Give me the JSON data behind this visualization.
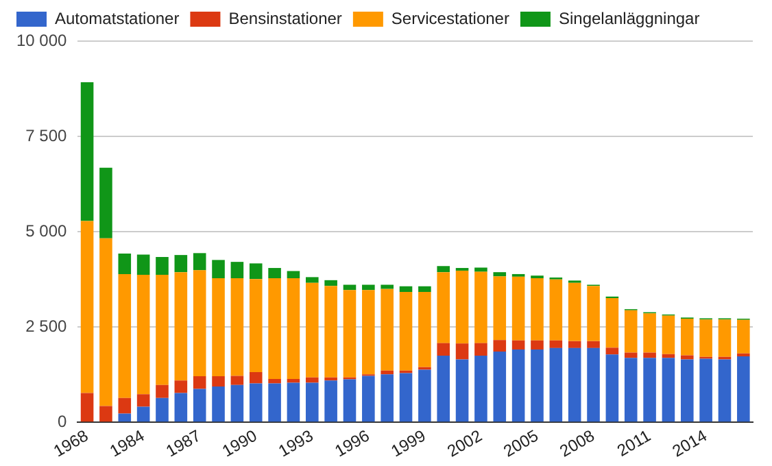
{
  "chart_data": {
    "type": "bar",
    "stacked": true,
    "categories": [
      "1968",
      null,
      null,
      "1984",
      null,
      null,
      "1987",
      null,
      null,
      "1990",
      null,
      null,
      "1993",
      null,
      null,
      "1996",
      null,
      null,
      "1999",
      null,
      null,
      "2002",
      null,
      null,
      "2005",
      null,
      null,
      "2008",
      null,
      null,
      "2011",
      null,
      null,
      "2014",
      null,
      null
    ],
    "series": [
      {
        "name": "Automatstationer",
        "color": "#3366cc",
        "values": [
          0,
          0,
          230,
          410,
          640,
          770,
          880,
          940,
          980,
          1020,
          1020,
          1040,
          1040,
          1100,
          1130,
          1220,
          1260,
          1290,
          1380,
          1750,
          1650,
          1750,
          1860,
          1910,
          1910,
          1950,
          1950,
          1950,
          1780,
          1690,
          1690,
          1690,
          1650,
          1670,
          1650,
          1730
        ]
      },
      {
        "name": "Bensinstationer",
        "color": "#dc3912",
        "values": [
          770,
          430,
          410,
          330,
          340,
          330,
          330,
          270,
          240,
          300,
          120,
          100,
          140,
          80,
          50,
          40,
          100,
          70,
          70,
          330,
          420,
          330,
          300,
          240,
          240,
          200,
          180,
          180,
          180,
          140,
          140,
          100,
          110,
          50,
          70,
          80
        ]
      },
      {
        "name": "Servicestationer",
        "color": "#ff9900",
        "values": [
          4510,
          4400,
          3250,
          3130,
          2890,
          2840,
          2780,
          2570,
          2560,
          2440,
          2640,
          2640,
          2480,
          2400,
          2290,
          2210,
          2140,
          2060,
          1970,
          1860,
          1910,
          1870,
          1670,
          1670,
          1630,
          1600,
          1530,
          1450,
          1300,
          1110,
          1030,
          1010,
          960,
          980,
          980,
          880
        ]
      },
      {
        "name": "Singelanläggningar",
        "color": "#109618",
        "values": [
          3640,
          1850,
          540,
          530,
          470,
          450,
          450,
          480,
          430,
          410,
          270,
          190,
          150,
          150,
          140,
          140,
          110,
          150,
          150,
          160,
          70,
          110,
          110,
          70,
          70,
          50,
          60,
          30,
          40,
          30,
          30,
          30,
          30,
          30,
          30,
          30
        ]
      }
    ],
    "ylim": [
      0,
      10000
    ],
    "yticks": [
      {
        "value": 0,
        "label": "0"
      },
      {
        "value": 2500,
        "label": "2 500"
      },
      {
        "value": 5000,
        "label": "5 000"
      },
      {
        "value": 7500,
        "label": "7 500"
      },
      {
        "value": 10000,
        "label": "10 000"
      }
    ],
    "grid": "y",
    "legend": "top left"
  }
}
